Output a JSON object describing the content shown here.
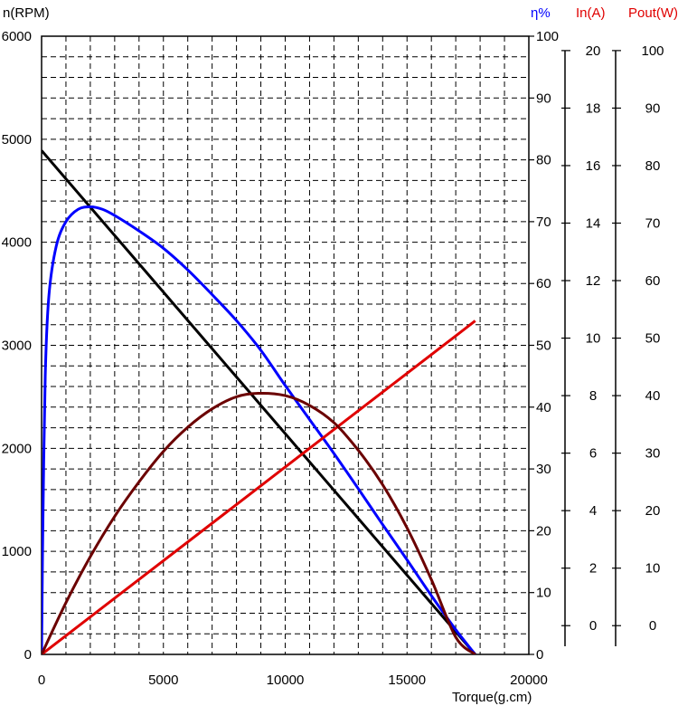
{
  "chart_data": {
    "type": "line",
    "title": "",
    "xlabel": "Torque(g.cm)",
    "x_ticks": [
      0,
      5000,
      10000,
      15000,
      20000
    ],
    "xlim": [
      0,
      20000
    ],
    "grid": true,
    "axes": {
      "speed": {
        "label": "n(RPM)",
        "ticks": [
          0,
          1000,
          2000,
          3000,
          4000,
          5000,
          6000
        ],
        "range": [
          0,
          6000
        ],
        "color": "#000000"
      },
      "efficiency": {
        "label": "η%",
        "ticks": [
          0,
          10,
          20,
          30,
          40,
          50,
          60,
          70,
          80,
          90,
          100
        ],
        "range": [
          0,
          100
        ],
        "color": "#0000ff"
      },
      "current": {
        "label": "In(A)",
        "ticks": [
          0,
          2,
          4,
          6,
          8,
          10,
          12,
          14,
          16,
          18,
          20
        ],
        "range": [
          -1,
          20.5
        ],
        "color": "#e00000"
      },
      "power": {
        "label": "Pout(W)",
        "ticks": [
          0,
          10,
          20,
          30,
          40,
          50,
          60,
          70,
          80,
          90,
          100
        ],
        "range": [
          -5,
          102.5
        ],
        "color": "#e00000"
      }
    },
    "series": [
      {
        "axis": "speed",
        "color": "#000000",
        "x": [
          0,
          17800
        ],
        "y": [
          4890,
          0
        ]
      },
      {
        "axis": "efficiency",
        "color": "#0000ff",
        "x": [
          0,
          50,
          150,
          300,
          600,
          1000,
          1500,
          2000,
          2500,
          3000,
          4000,
          5000,
          6000,
          7000,
          8000,
          9000,
          10000,
          11000,
          12000,
          13000,
          14000,
          15000,
          16000,
          17000,
          17800
        ],
        "y": [
          0,
          20,
          45,
          58,
          66,
          70,
          72,
          72.4,
          72,
          71,
          68.5,
          65.7,
          62.2,
          58.2,
          54,
          49.2,
          43.5,
          38,
          32.5,
          26.8,
          21,
          15.3,
          9.5,
          4,
          0
        ]
      },
      {
        "axis": "current",
        "color": "#e00000",
        "x": [
          0,
          17800
        ],
        "y": [
          -1,
          10.6
        ]
      },
      {
        "axis": "power",
        "color": "#6b0000",
        "x": [
          0,
          1000,
          2000,
          3000,
          4000,
          5000,
          6000,
          7000,
          8000,
          8900,
          10000,
          11000,
          12000,
          13000,
          14000,
          15000,
          16000,
          17000,
          17800
        ],
        "y": [
          -5,
          4,
          12,
          19,
          25,
          30.3,
          34.5,
          37.7,
          39.8,
          40.4,
          40,
          38.3,
          35.3,
          30.5,
          24.5,
          17,
          8,
          -2,
          -5
        ]
      }
    ]
  }
}
